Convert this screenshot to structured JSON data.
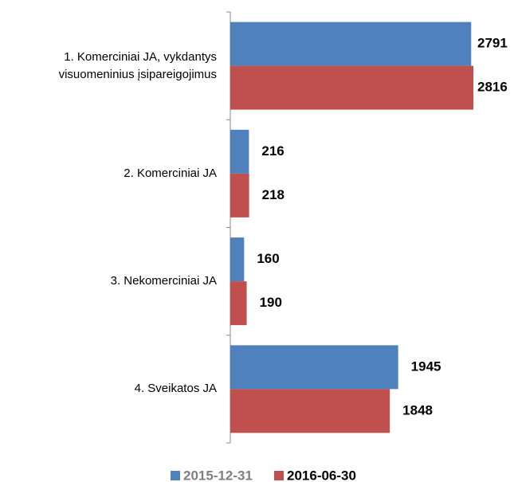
{
  "chart_data": {
    "type": "bar",
    "orientation": "horizontal",
    "categories": [
      "1. Komerciniai JA, vykdantys visuomeninius įsipareigojimus",
      "2. Komerciniai JA",
      "3. Nekomerciniai JA",
      "4. Sveikatos JA"
    ],
    "series": [
      {
        "name": "2015-12-31",
        "color": "#4f81bd",
        "values": [
          2791,
          216,
          160,
          1945
        ]
      },
      {
        "name": "2016-06-30",
        "color": "#c0504d",
        "values": [
          2816,
          218,
          190,
          1848
        ]
      }
    ],
    "legend": "bottom"
  }
}
